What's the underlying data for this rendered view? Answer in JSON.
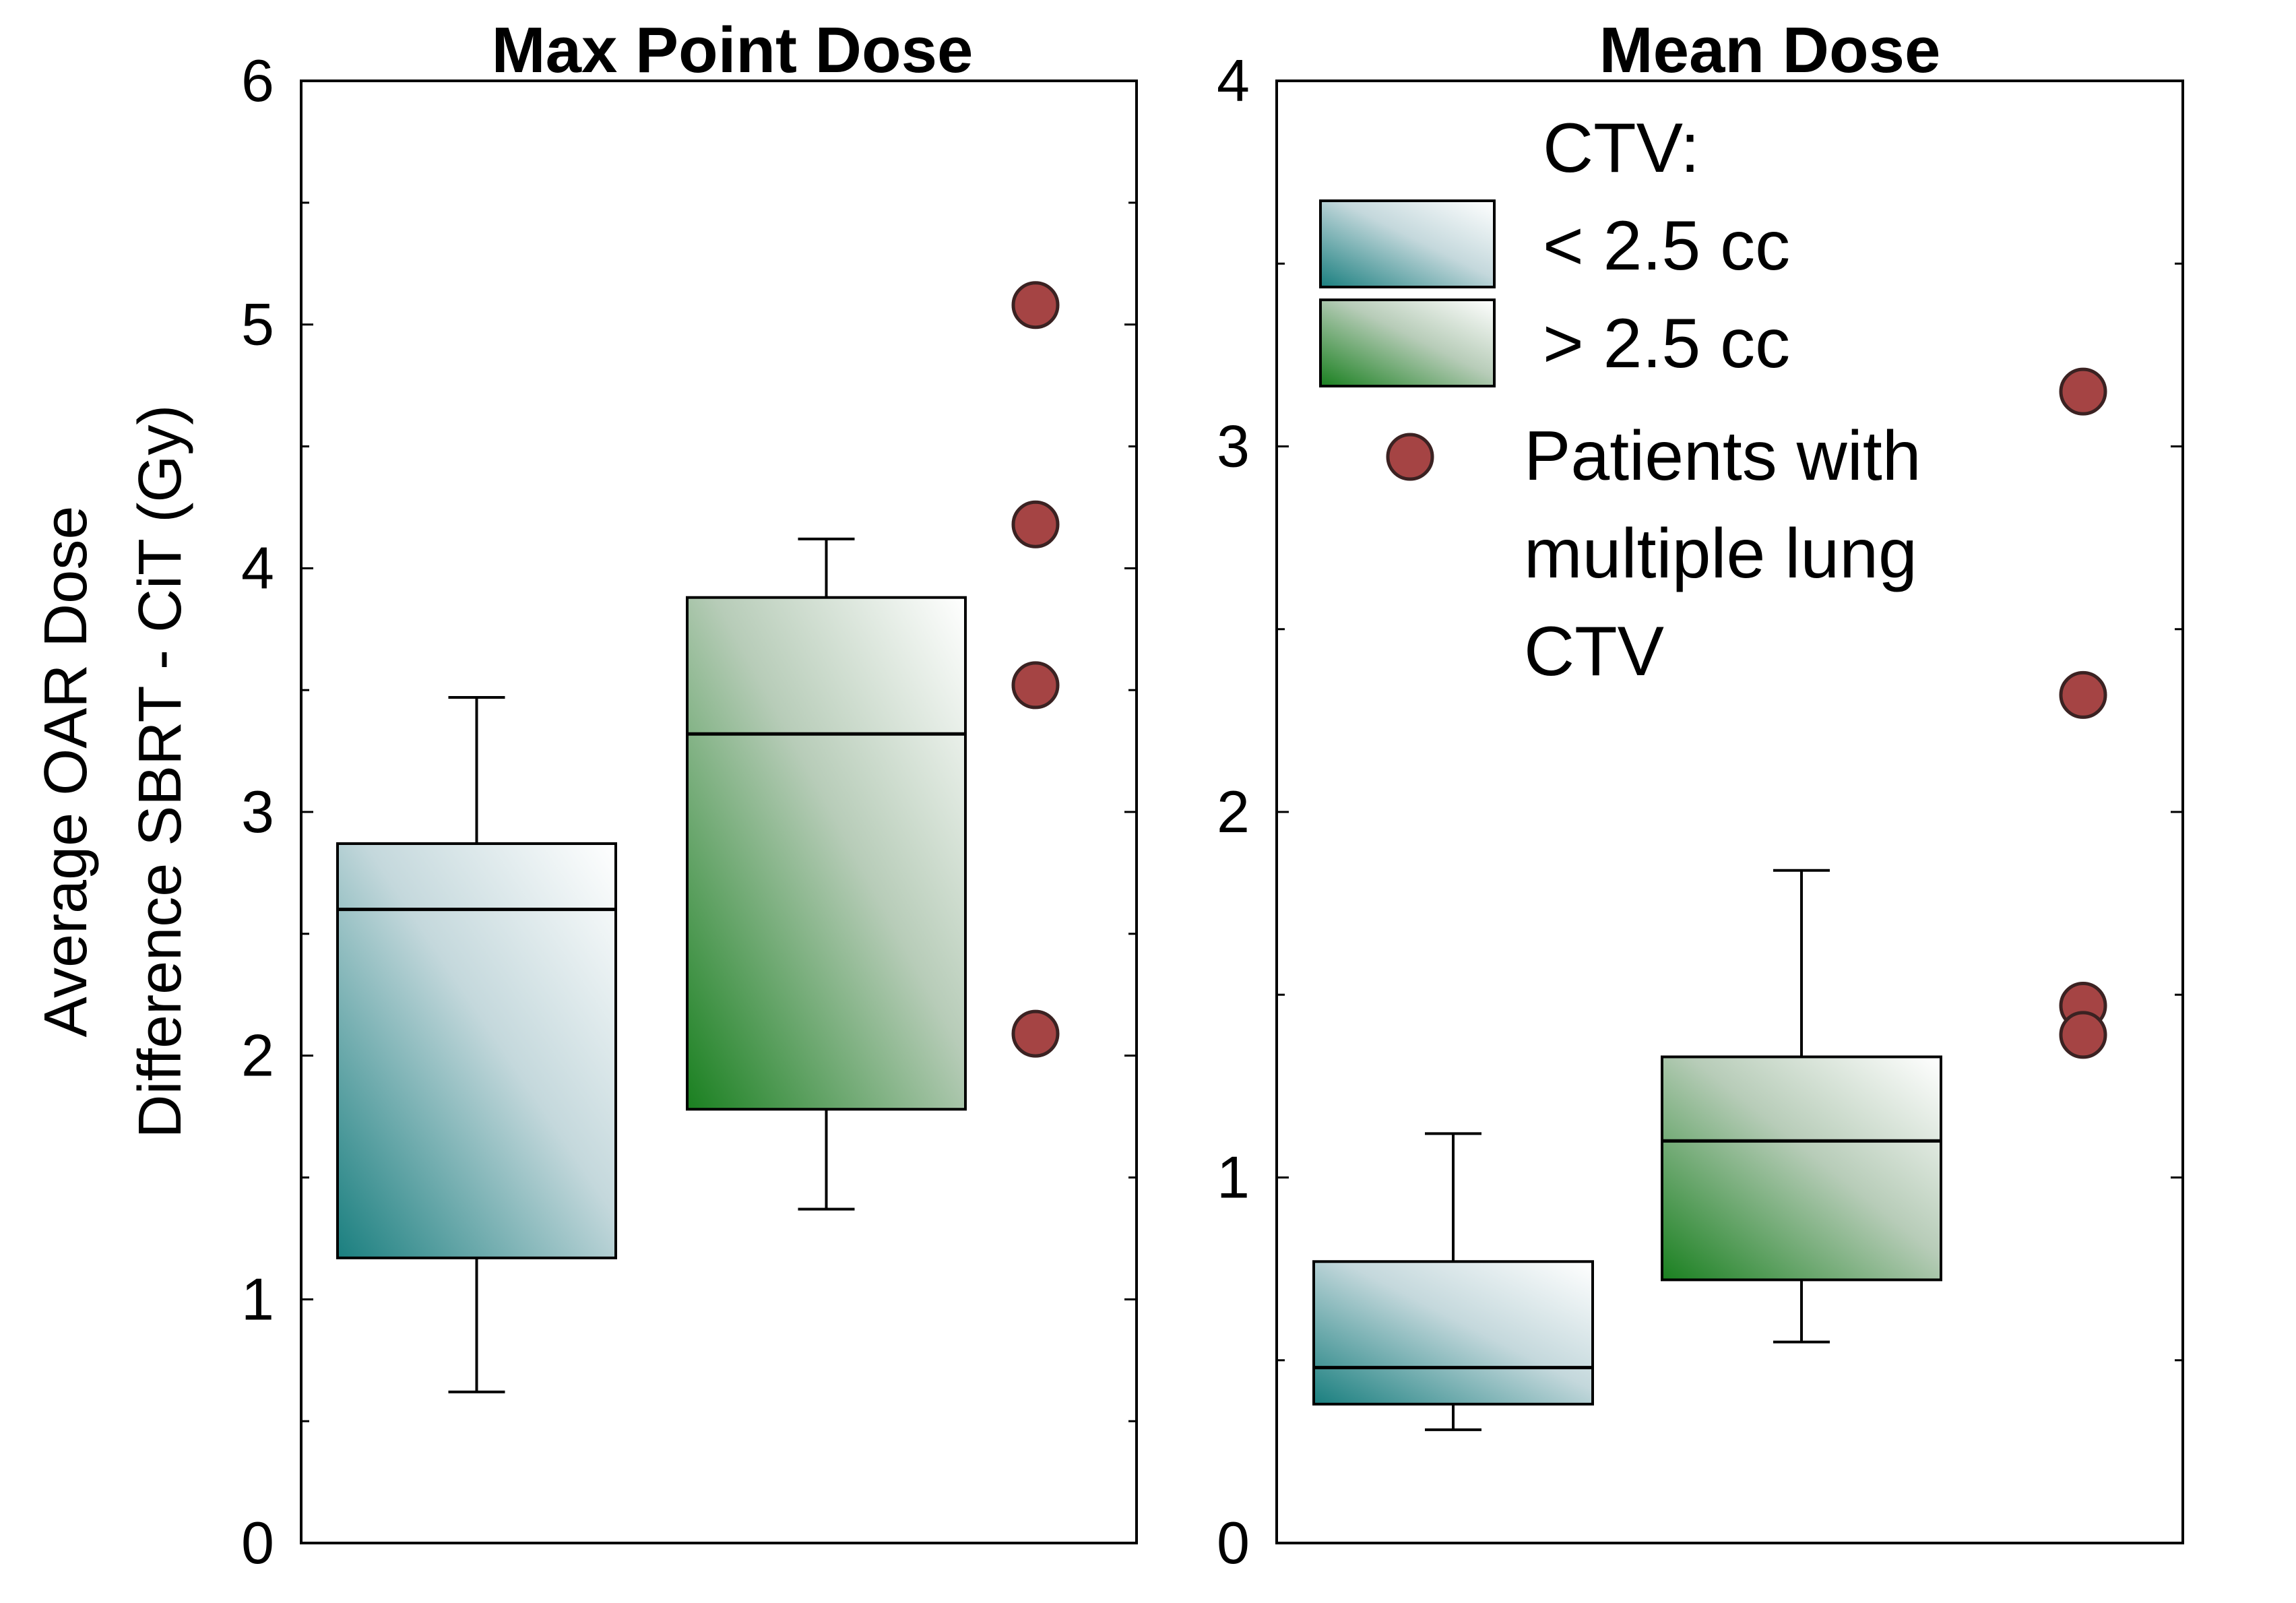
{
  "chart_data": [
    {
      "type": "box",
      "title": "Max Point Dose",
      "ylabel": [
        "Average OAR Dose",
        "Difference SBRT - CiT (Gy)"
      ],
      "ylim": [
        0,
        6
      ],
      "yticks": [
        0,
        1,
        2,
        3,
        4,
        5,
        6
      ],
      "minor_ticks": [
        0.5,
        1.5,
        2.5,
        3.5,
        4.5,
        5.5
      ],
      "boxes": [
        {
          "group": "< 2.5 cc",
          "whisker_low": 0.62,
          "q1": 1.17,
          "median": 2.6,
          "q3": 2.87,
          "whisker_high": 3.47
        },
        {
          "group": "> 2.5 cc",
          "whisker_low": 1.37,
          "q1": 1.78,
          "median": 3.32,
          "q3": 3.88,
          "whisker_high": 4.12
        }
      ],
      "multi_ctv_points": [
        5.08,
        4.18,
        3.52,
        2.09
      ]
    },
    {
      "type": "box",
      "title": "Mean Dose",
      "ylim": [
        0,
        4
      ],
      "yticks": [
        0,
        1,
        2,
        3,
        4
      ],
      "minor_ticks": [
        0.5,
        1.5,
        2.5,
        3.5
      ],
      "boxes": [
        {
          "group": "< 2.5 cc",
          "whisker_low": 0.31,
          "q1": 0.38,
          "median": 0.48,
          "q3": 0.77,
          "whisker_high": 1.12
        },
        {
          "group": "> 2.5 cc",
          "whisker_low": 0.55,
          "q1": 0.72,
          "median": 1.1,
          "q3": 1.33,
          "whisker_high": 1.84
        }
      ],
      "multi_ctv_points": [
        3.15,
        2.32,
        1.47,
        1.39
      ]
    }
  ],
  "legend": {
    "title": "CTV:",
    "entries": [
      "< 2.5 cc",
      "> 2.5 cc"
    ],
    "points_label": [
      "Patients with",
      "multiple lung",
      "CTV"
    ]
  },
  "colors": {
    "small_ctv": "#1a7f7f",
    "large_ctv": "#1a8020",
    "points": "#a54444"
  }
}
